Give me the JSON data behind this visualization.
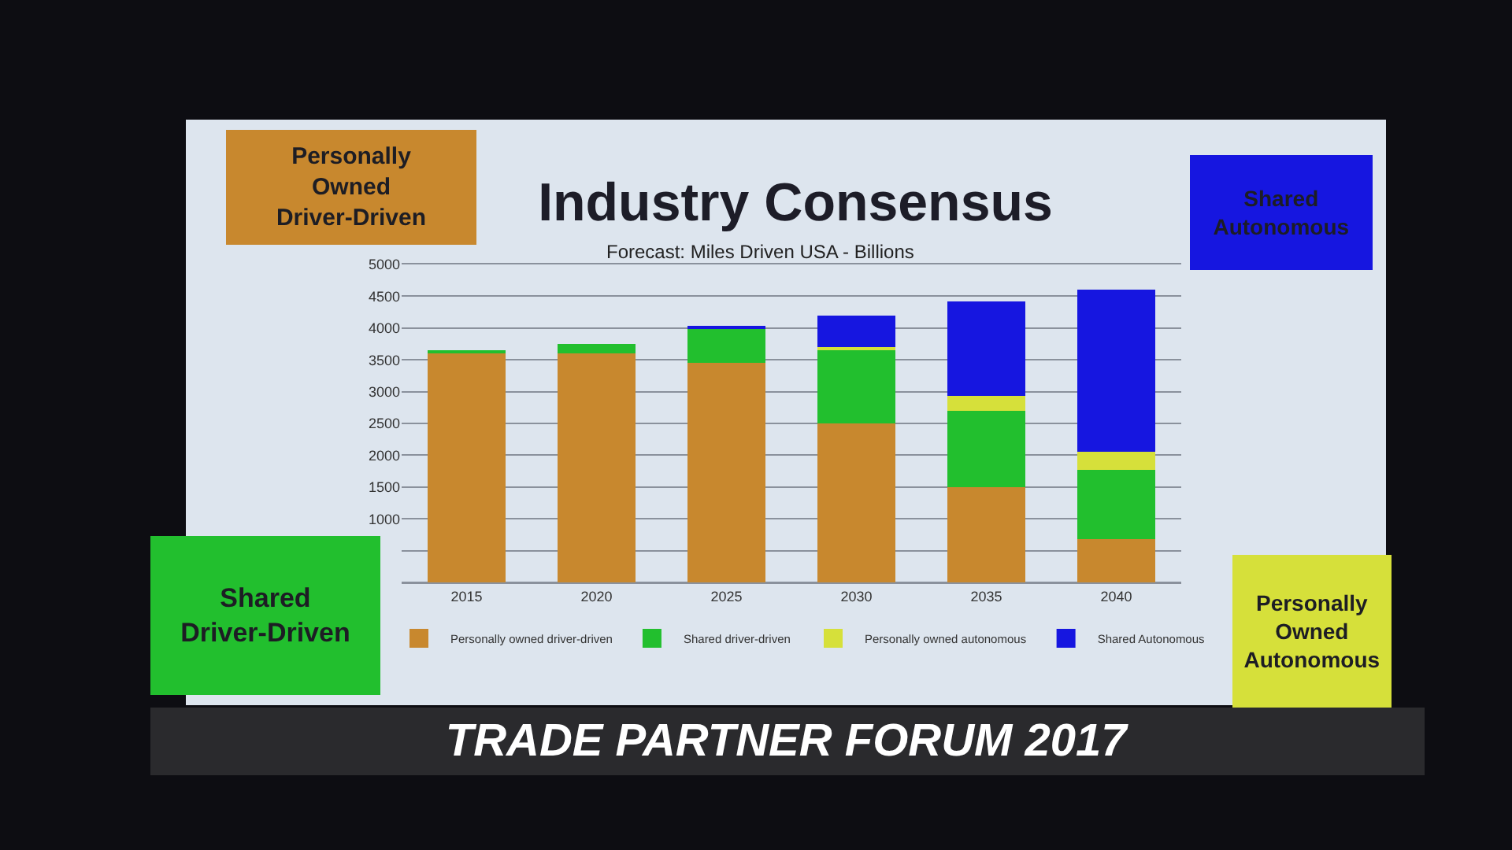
{
  "chart_data": {
    "type": "bar",
    "title": "Industry Consensus",
    "subtitle": "Forecast: Miles Driven USA - Billions",
    "categories": [
      "2015",
      "2020",
      "2025",
      "2030",
      "2035",
      "2040"
    ],
    "series": [
      {
        "name": "Personally owned driver-driven",
        "color": "#c8882e",
        "values": [
          3600,
          3600,
          3450,
          2500,
          1500,
          680
        ]
      },
      {
        "name": "Shared driver-driven",
        "color": "#22bf2e",
        "values": [
          50,
          150,
          530,
          1150,
          1200,
          1090
        ]
      },
      {
        "name": "Personally owned autonomous",
        "color": "#d6e03a",
        "values": [
          null,
          null,
          null,
          50,
          230,
          280
        ]
      },
      {
        "name": "Shared Autonomous",
        "color": "#1616e0",
        "values": [
          null,
          null,
          50,
          490,
          1490,
          2550
        ]
      }
    ],
    "stacked": true,
    "ylim": [
      0,
      5000
    ],
    "yticks": [
      {
        "value": 0,
        "label": null
      },
      {
        "value": 500,
        "label": null
      },
      1000,
      1500,
      2000,
      2500,
      3000,
      3500,
      4000,
      4500,
      5000
    ],
    "grid": "y",
    "legend": "bottom",
    "annotations": [
      "Personally Owned Driver-Driven",
      "Shared Driver-Driven",
      "Personally Owned Autonomous",
      "Shared Autonomous",
      "TRADE PARTNER FORUM 2017"
    ]
  }
}
